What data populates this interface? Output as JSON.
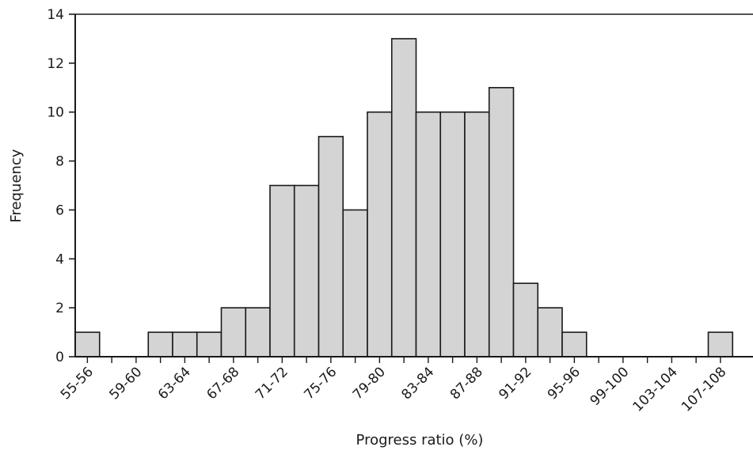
{
  "chart_data": {
    "type": "bar",
    "title": "",
    "xlabel": "Progress ratio (%)",
    "ylabel": "Frequency",
    "ylim": [
      0,
      14
    ],
    "yticks": [
      0,
      2,
      4,
      6,
      8,
      10,
      12,
      14
    ],
    "categories": [
      "55-56",
      "57-58",
      "59-60",
      "61-62",
      "63-64",
      "65-66",
      "67-68",
      "69-70",
      "71-72",
      "73-74",
      "75-76",
      "77-78",
      "79-80",
      "81-82",
      "83-84",
      "85-86",
      "87-88",
      "89-90",
      "91-92",
      "93-94",
      "95-96",
      "97-98",
      "99-100",
      "101-102",
      "103-104",
      "105-106",
      "107-108"
    ],
    "values": [
      1,
      0,
      0,
      1,
      1,
      1,
      2,
      2,
      7,
      7,
      9,
      6,
      10,
      13,
      10,
      10,
      10,
      11,
      3,
      2,
      1,
      0,
      0,
      0,
      0,
      0,
      1
    ],
    "visible_tick_labels": [
      "55-56",
      "59-60",
      "63-64",
      "67-68",
      "71-72",
      "75-76",
      "79-80",
      "83-84",
      "87-88",
      "91-92",
      "95-96",
      "99-100",
      "103-104",
      "107-108"
    ],
    "bar_fill": "#d4d4d4",
    "bar_stroke": "#1a1a1a",
    "grid": false
  }
}
